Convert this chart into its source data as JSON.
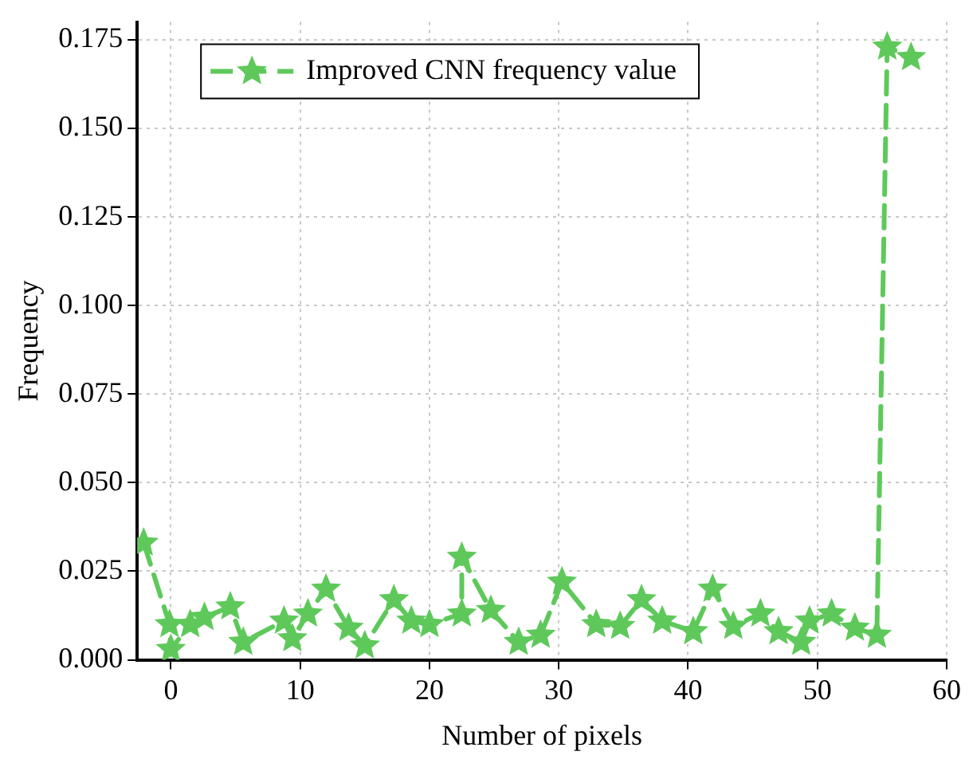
{
  "chart_data": {
    "type": "line",
    "xlabel": "Number of pixels",
    "ylabel": "Frequency",
    "x": [
      -2.1,
      -0.1,
      0,
      1.5,
      2.6,
      4.6,
      5.6,
      8.75,
      9.4,
      10.6,
      12,
      13.75,
      15,
      17.25,
      18.6,
      20,
      22.5,
      22.5,
      24.75,
      26.9,
      28.6,
      30.25,
      32.9,
      34.75,
      36.4,
      38,
      40.4,
      41.9,
      43.5,
      45.6,
      47,
      48.75,
      49.4,
      51.1,
      52.9,
      54.6,
      55.4,
      57.25
    ],
    "series": [
      {
        "name": "Improved CNN frequency value",
        "color": "#5ec95a",
        "values": [
          0.033,
          0.01,
          0.003,
          0.01,
          0.012,
          0.015,
          0.005,
          0.011,
          0.006,
          0.013,
          0.02,
          0.009,
          0.004,
          0.017,
          0.011,
          0.01,
          0.013,
          0.029,
          0.014,
          0.005,
          0.007,
          0.022,
          0.01,
          0.0095,
          0.017,
          0.011,
          0.008,
          0.02,
          0.0095,
          0.013,
          0.008,
          0.005,
          0.011,
          0.013,
          0.009,
          0.007,
          0.173,
          0.17
        ]
      }
    ],
    "xlim": [
      -2.6,
      60
    ],
    "xticks": [
      0,
      10,
      20,
      30,
      40,
      50,
      60
    ],
    "ylim": [
      0,
      0.18
    ],
    "yticks": [
      {
        "value": 0,
        "label": "0.000"
      },
      {
        "value": 0.025,
        "label": "0.025"
      },
      {
        "value": 0.05,
        "label": "0.050"
      },
      {
        "value": 0.075,
        "label": "0.075"
      },
      {
        "value": 0.1,
        "label": "0.100"
      },
      {
        "value": 0.125,
        "label": "0.125"
      },
      {
        "value": 0.15,
        "label": "0.150"
      },
      {
        "value": 0.175,
        "label": "0.175"
      }
    ],
    "grid": true,
    "legend": "top left",
    "marker": "star",
    "line_style": "dashed"
  }
}
